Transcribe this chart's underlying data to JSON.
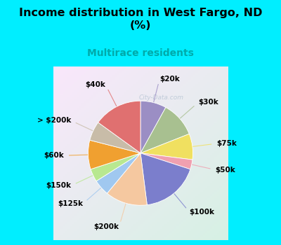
{
  "title": "Income distribution in West Fargo, ND\n(%)",
  "subtitle": "Multirace residents",
  "labels": [
    "$20k",
    "$30k",
    "$75k",
    "$50k",
    "$100k",
    "$200k",
    "$125k",
    "$150k",
    "$60k",
    "> $200k",
    "$40k"
  ],
  "sizes": [
    8,
    11,
    8,
    3,
    18,
    13,
    5,
    4,
    9,
    6,
    15
  ],
  "colors": [
    "#9b8ec4",
    "#a8c090",
    "#f0e060",
    "#f0a0b0",
    "#7b7ecc",
    "#f5c8a0",
    "#a0c8f0",
    "#b8e890",
    "#f0a030",
    "#c8bca8",
    "#e07070"
  ],
  "background_cyan": "#00eeff",
  "chart_bg_color": "#d0ede0",
  "label_fontsize": 7.5,
  "title_fontsize": 11.5,
  "subtitle_fontsize": 10,
  "subtitle_color": "#00aaaa",
  "watermark": "City-Data.com"
}
